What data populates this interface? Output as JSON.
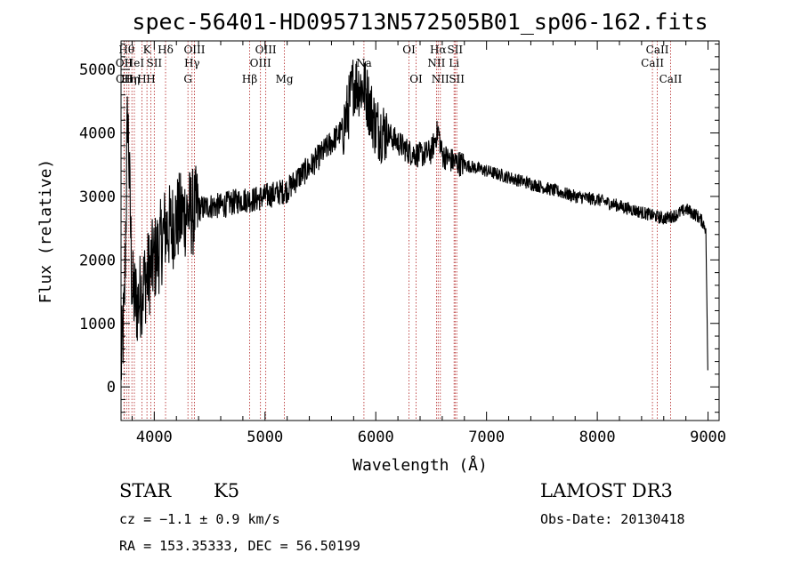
{
  "chart_data": {
    "type": "line",
    "title": "spec-56401-HD095713N572505B01_sp06-162.fits",
    "xlabel": "Wavelength (Å)",
    "ylabel": "Flux (relative)",
    "xlim": [
      3700,
      9100
    ],
    "ylim": [
      -530,
      5450
    ],
    "x_ticks": [
      "4000",
      "5000",
      "6000",
      "7000",
      "8000",
      "9000"
    ],
    "y_ticks": [
      "0",
      "1000",
      "2000",
      "3000",
      "4000",
      "5000"
    ],
    "x_tick_values": [
      4000,
      5000,
      6000,
      7000,
      8000,
      9000
    ],
    "y_tick_values": [
      0,
      1000,
      2000,
      3000,
      4000,
      5000
    ],
    "grid": false,
    "line_color": "#000000",
    "marker_color": "#b22222",
    "spectrum": {
      "name": "Flux",
      "x": [
        3700,
        3730,
        3760,
        3800,
        3850,
        3900,
        3950,
        4000,
        4050,
        4100,
        4150,
        4200,
        4250,
        4300,
        4350,
        4400,
        4500,
        4600,
        4700,
        4800,
        4900,
        5000,
        5100,
        5200,
        5300,
        5400,
        5500,
        5600,
        5700,
        5750,
        5800,
        5850,
        5900,
        5950,
        6000,
        6100,
        6200,
        6300,
        6400,
        6500,
        6563,
        6600,
        6700,
        6800,
        6900,
        7000,
        7100,
        7200,
        7400,
        7600,
        7800,
        8000,
        8200,
        8400,
        8500,
        8600,
        8700,
        8800,
        8900,
        8950,
        8980,
        9000
      ],
      "y": [
        300,
        1200,
        4400,
        1500,
        1300,
        1600,
        1800,
        2000,
        2200,
        2500,
        2500,
        2650,
        2700,
        2750,
        2750,
        2800,
        2850,
        2850,
        2900,
        2950,
        2950,
        3000,
        3050,
        3100,
        3300,
        3450,
        3650,
        3850,
        4050,
        4350,
        4800,
        4750,
        4700,
        4400,
        4100,
        4000,
        3850,
        3700,
        3650,
        3700,
        4050,
        3650,
        3550,
        3500,
        3450,
        3400,
        3350,
        3300,
        3200,
        3100,
        3000,
        2950,
        2850,
        2750,
        2700,
        2650,
        2700,
        2800,
        2700,
        2600,
        2500,
        0
      ]
    },
    "line_markers": [
      {
        "wave": 3750,
        "label": "Hθ",
        "row": 1
      },
      {
        "wave": 3727,
        "label": "OII",
        "row": 2
      },
      {
        "wave": 3729,
        "label": "OII",
        "row": 3
      },
      {
        "wave": 3771,
        "label": "Hη",
        "row": 3
      },
      {
        "wave": 3798,
        "label": "Hη",
        "row": 3
      },
      {
        "wave": 3820,
        "label": "HeI",
        "row": 2
      },
      {
        "wave": 3889,
        "label": "H",
        "row": 3
      },
      {
        "wave": 3934,
        "label": "K",
        "row": 1
      },
      {
        "wave": 3969,
        "label": "H",
        "row": 3
      },
      {
        "wave": 4000,
        "label": "SII",
        "row": 2
      },
      {
        "wave": 4102,
        "label": "Hδ",
        "row": 1
      },
      {
        "wave": 4304,
        "label": "G",
        "row": 3
      },
      {
        "wave": 4341,
        "label": "Hγ",
        "row": 2
      },
      {
        "wave": 4363,
        "label": "OIII",
        "row": 1
      },
      {
        "wave": 4861,
        "label": "Hβ",
        "row": 3
      },
      {
        "wave": 4959,
        "label": "OIII",
        "row": 2
      },
      {
        "wave": 5007,
        "label": "OIII",
        "row": 1
      },
      {
        "wave": 5175,
        "label": "Mg",
        "row": 3
      },
      {
        "wave": 5893,
        "label": "Na",
        "row": 2
      },
      {
        "wave": 6300,
        "label": "OI",
        "row": 1
      },
      {
        "wave": 6364,
        "label": "OI",
        "row": 3
      },
      {
        "wave": 6548,
        "label": "NII",
        "row": 2
      },
      {
        "wave": 6563,
        "label": "Hα",
        "row": 1
      },
      {
        "wave": 6583,
        "label": "NII",
        "row": 3
      },
      {
        "wave": 6707,
        "label": "Li",
        "row": 2
      },
      {
        "wave": 6716,
        "label": "SII",
        "row": 1
      },
      {
        "wave": 6731,
        "label": "SII",
        "row": 3
      },
      {
        "wave": 8498,
        "label": "CaII",
        "row": 2
      },
      {
        "wave": 8542,
        "label": "CaII",
        "row": 1
      },
      {
        "wave": 8662,
        "label": "CaII",
        "row": 3
      }
    ]
  },
  "info": {
    "class": "STAR",
    "subclass": "K5",
    "survey": "LAMOST DR3",
    "cz": "cz = −1.1 ± 0.9 km/s",
    "obs_date": "Obs-Date: 20130418",
    "radec": "RA = 153.35333, DEC =  56.50199"
  }
}
